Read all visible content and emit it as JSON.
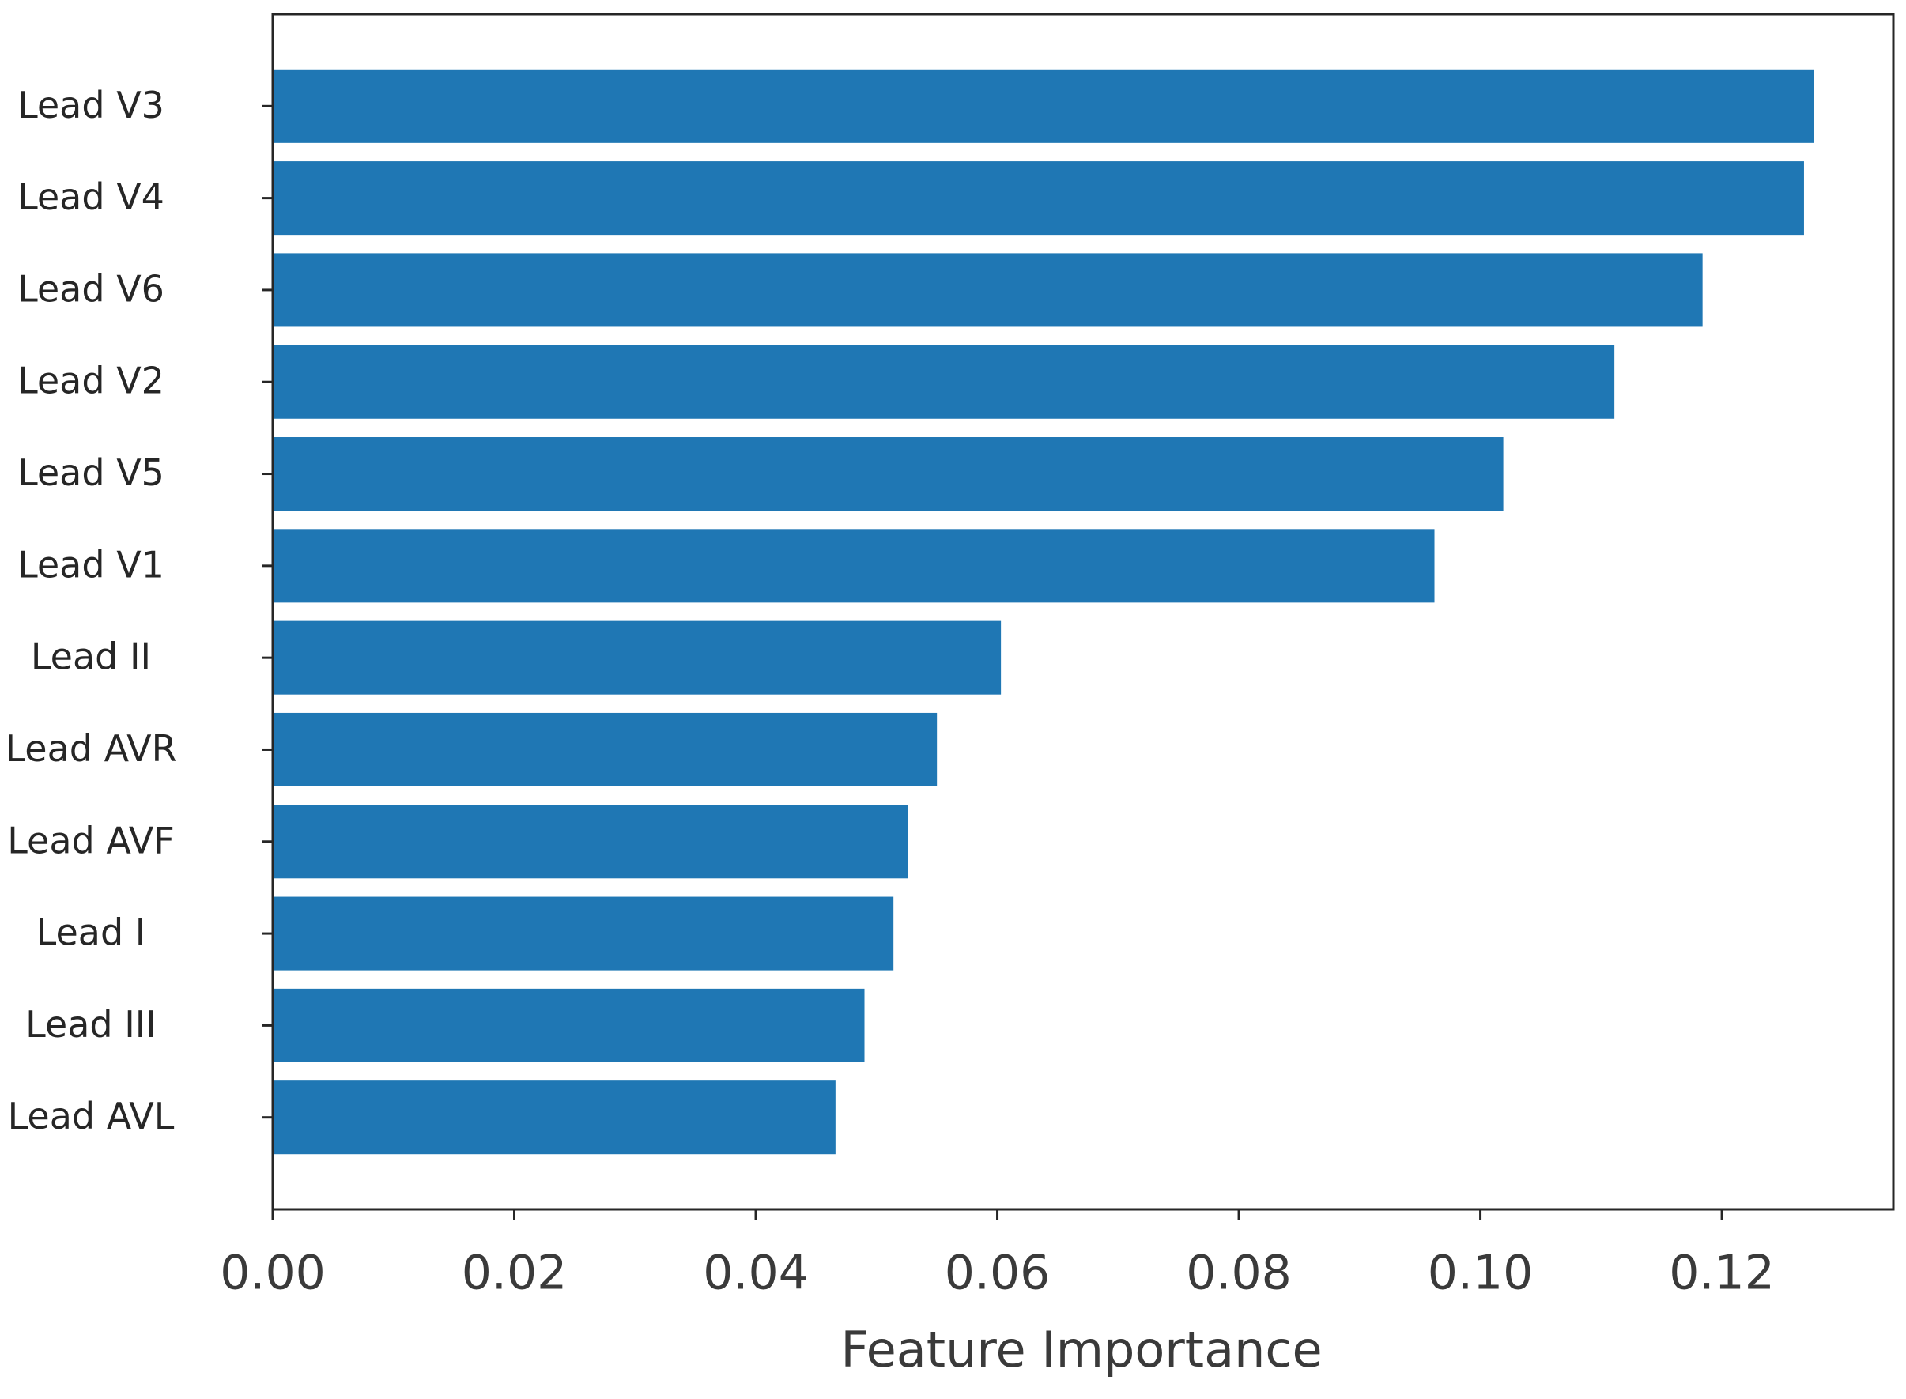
{
  "chart_data": {
    "type": "barh",
    "xlabel": "Feature Importance",
    "categories": [
      "Lead V3",
      "Lead V4",
      "Lead V6",
      "Lead V2",
      "Lead V5",
      "Lead V1",
      "Lead II",
      "Lead AVR",
      "Lead AVF",
      "Lead I",
      "Lead III",
      "Lead AVL"
    ],
    "values": [
      0.1276,
      0.1268,
      0.1184,
      0.1111,
      0.1019,
      0.0962,
      0.0603,
      0.055,
      0.0526,
      0.0514,
      0.049,
      0.0466
    ],
    "color": "#1f77b4",
    "xlim": [
      0,
      0.1342
    ],
    "xticks": [
      {
        "value": 0,
        "label": "0.00"
      },
      0.02,
      0.04,
      0.06,
      0.08,
      {
        "value": 0.1,
        "label": "0.10"
      },
      0.12
    ],
    "grid": false
  }
}
